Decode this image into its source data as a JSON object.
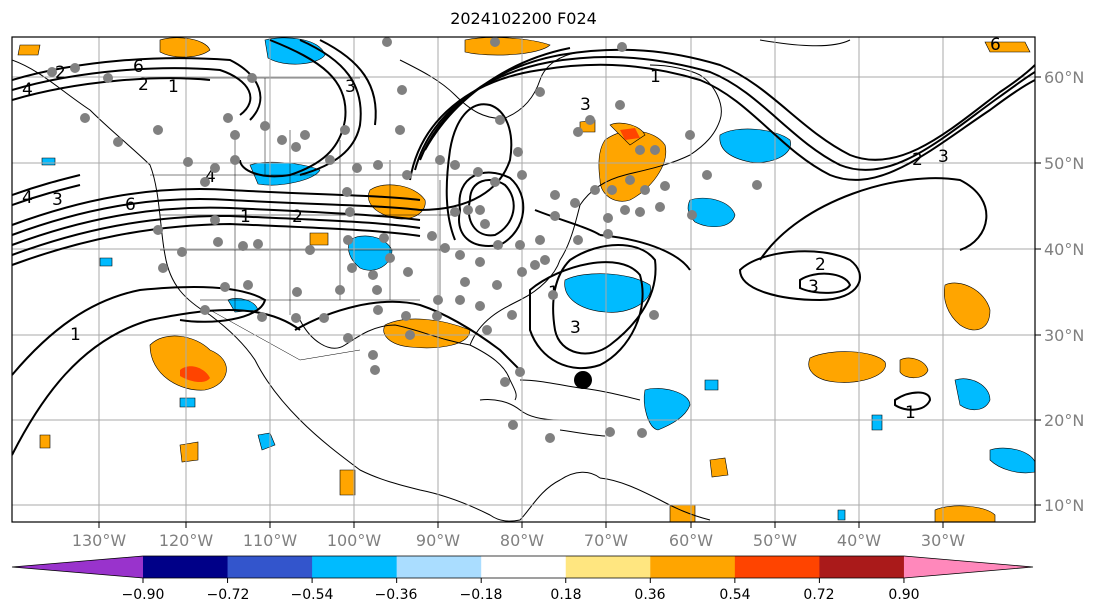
{
  "title": "2024102200 F024",
  "lon_labels": [
    "130°W",
    "120°W",
    "110°W",
    "100°W",
    "90°W",
    "80°W",
    "70°W",
    "60°W",
    "50°W",
    "40°W",
    "30°W"
  ],
  "lat_labels": [
    "60°N",
    "50°N",
    "40°N",
    "30°N",
    "20°N",
    "10°N"
  ],
  "colorbar": {
    "colors": [
      "#9933cc",
      "#000088",
      "#3355cc",
      "#00bbff",
      "#aaddff",
      "#ffffff",
      "#ffe680",
      "#ffa500",
      "#ff4400",
      "#aa1a1a",
      "#ff88bb"
    ],
    "tick_labels": [
      "−0.90",
      "−0.72",
      "−0.54",
      "−0.36",
      "−0.18",
      "0.18",
      "0.36",
      "0.54",
      "0.72",
      "0.90"
    ]
  },
  "contour_labels": [
    "6",
    "2",
    "1",
    "4",
    "4",
    "3",
    "1",
    "6",
    "2",
    "4",
    "1",
    "2",
    "3",
    "1",
    "2",
    "3",
    "3",
    "1",
    "1",
    "2",
    "3",
    "6",
    "3"
  ],
  "marker": {
    "label": "storm center"
  }
}
